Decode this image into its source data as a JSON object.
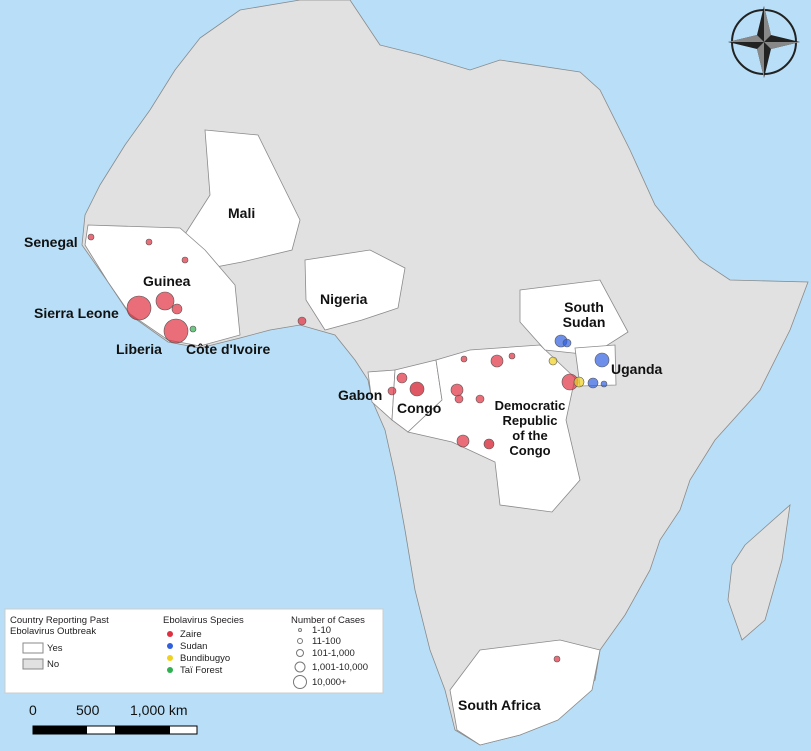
{
  "map": {
    "country_labels": [
      "Senegal",
      "Mali",
      "Guinea",
      "Sierra Leone",
      "Liberia",
      "Côte d'Ivoire",
      "Nigeria",
      "South\nSudan",
      "Uganda",
      "Gabon",
      "Congo",
      "Democratic\nRepublic\nof the\nCongo",
      "South Africa"
    ]
  },
  "legend": {
    "outbreak": {
      "title": "Country Reporting Past\nEbolavirus Outbreak",
      "items": [
        "Yes",
        "No"
      ]
    },
    "species": {
      "title": "Ebolavirus Species",
      "items": [
        "Zaire",
        "Sudan",
        "Bundibugyo",
        "Taï Forest"
      ]
    },
    "cases": {
      "title": "Number of Cases",
      "items": [
        "1-10",
        "11-100",
        "101-1,000",
        "1,001-10,000",
        "10,000+"
      ]
    }
  },
  "scale_bar": {
    "labels": [
      "0",
      "500",
      "1,000 km"
    ]
  }
}
